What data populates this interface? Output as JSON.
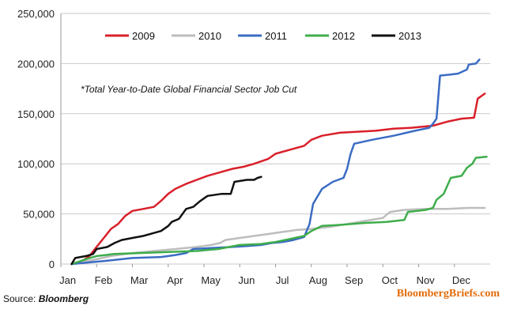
{
  "chart_data": {
    "type": "line",
    "annotation": "*Total Year-to-Date Global Financial Sector Job Cut",
    "xlabel": "",
    "ylabel": "",
    "x_axis": {
      "range": [
        0,
        12
      ],
      "unit": "month",
      "tick_labels": [
        "Jan",
        "Feb",
        "Mar",
        "Apr",
        "May",
        "Jun",
        "Jul",
        "Aug",
        "Sep",
        "Oct",
        "Nov",
        "Dec"
      ]
    },
    "ylim": [
      0,
      250000
    ],
    "yticks": [
      0,
      50000,
      100000,
      150000,
      200000,
      250000
    ],
    "ytick_labels": [
      "0",
      "50,000",
      "100,000",
      "150,000",
      "200,000",
      "250,000"
    ],
    "grid": "horizontal",
    "legend_position": "top-center",
    "series": [
      {
        "name": "2009",
        "color": "#d9202a",
        "points": [
          [
            0.3,
            0
          ],
          [
            0.6,
            3000
          ],
          [
            0.8,
            8000
          ],
          [
            0.95,
            15000
          ],
          [
            1.2,
            26000
          ],
          [
            1.4,
            35000
          ],
          [
            1.6,
            40000
          ],
          [
            1.8,
            48000
          ],
          [
            2.0,
            53000
          ],
          [
            2.3,
            55000
          ],
          [
            2.6,
            57000
          ],
          [
            2.8,
            63000
          ],
          [
            3.0,
            70000
          ],
          [
            3.2,
            75000
          ],
          [
            3.5,
            80000
          ],
          [
            3.8,
            84000
          ],
          [
            4.1,
            88000
          ],
          [
            4.5,
            92000
          ],
          [
            4.8,
            95000
          ],
          [
            5.1,
            97000
          ],
          [
            5.4,
            100000
          ],
          [
            5.8,
            105000
          ],
          [
            6.0,
            110000
          ],
          [
            6.4,
            114000
          ],
          [
            6.8,
            118000
          ],
          [
            7.0,
            124000
          ],
          [
            7.3,
            128000
          ],
          [
            7.8,
            131000
          ],
          [
            8.3,
            132000
          ],
          [
            8.8,
            133000
          ],
          [
            9.3,
            135000
          ],
          [
            9.8,
            136000
          ],
          [
            10.4,
            138000
          ],
          [
            10.8,
            142000
          ],
          [
            11.2,
            145000
          ],
          [
            11.55,
            146000
          ],
          [
            11.65,
            165000
          ],
          [
            11.85,
            170000
          ]
        ]
      },
      {
        "name": "2010",
        "color": "#bdbdbd",
        "points": [
          [
            0.3,
            0
          ],
          [
            0.9,
            4000
          ],
          [
            1.4,
            8000
          ],
          [
            2.0,
            11000
          ],
          [
            2.6,
            13000
          ],
          [
            3.2,
            15000
          ],
          [
            3.8,
            17000
          ],
          [
            4.2,
            19000
          ],
          [
            4.45,
            21000
          ],
          [
            4.6,
            24000
          ],
          [
            5.0,
            26000
          ],
          [
            5.4,
            28000
          ],
          [
            5.8,
            30000
          ],
          [
            6.2,
            32000
          ],
          [
            6.6,
            34000
          ],
          [
            7.0,
            35000
          ],
          [
            7.5,
            37000
          ],
          [
            8.0,
            40000
          ],
          [
            8.5,
            43000
          ],
          [
            9.0,
            46000
          ],
          [
            9.2,
            52000
          ],
          [
            9.6,
            54000
          ],
          [
            10.2,
            55000
          ],
          [
            10.8,
            55000
          ],
          [
            11.4,
            56000
          ],
          [
            11.85,
            56000
          ]
        ]
      },
      {
        "name": "2011",
        "color": "#3b6cc4",
        "points": [
          [
            0.3,
            0
          ],
          [
            1.2,
            3000
          ],
          [
            2.0,
            6000
          ],
          [
            2.8,
            7000
          ],
          [
            3.2,
            9000
          ],
          [
            3.5,
            11000
          ],
          [
            3.7,
            15000
          ],
          [
            4.2,
            16000
          ],
          [
            4.8,
            17000
          ],
          [
            5.2,
            18000
          ],
          [
            5.6,
            19000
          ],
          [
            5.9,
            21000
          ],
          [
            6.2,
            22000
          ],
          [
            6.5,
            24000
          ],
          [
            6.8,
            27000
          ],
          [
            6.95,
            40000
          ],
          [
            7.05,
            60000
          ],
          [
            7.3,
            75000
          ],
          [
            7.6,
            82000
          ],
          [
            7.9,
            86000
          ],
          [
            8.0,
            95000
          ],
          [
            8.1,
            110000
          ],
          [
            8.2,
            120000
          ],
          [
            8.7,
            124000
          ],
          [
            9.3,
            128000
          ],
          [
            9.9,
            133000
          ],
          [
            10.3,
            136000
          ],
          [
            10.4,
            140000
          ],
          [
            10.5,
            145000
          ],
          [
            10.6,
            188000
          ],
          [
            10.9,
            189000
          ],
          [
            11.1,
            190000
          ],
          [
            11.35,
            194000
          ],
          [
            11.4,
            199000
          ],
          [
            11.6,
            200000
          ],
          [
            11.7,
            204000
          ]
        ]
      },
      {
        "name": "2012",
        "color": "#3ead4b",
        "points": [
          [
            0.3,
            0
          ],
          [
            0.8,
            6000
          ],
          [
            1.0,
            8000
          ],
          [
            1.5,
            10000
          ],
          [
            2.2,
            11000
          ],
          [
            3.0,
            12000
          ],
          [
            3.8,
            13000
          ],
          [
            4.4,
            15000
          ],
          [
            5.0,
            19000
          ],
          [
            5.6,
            20000
          ],
          [
            6.0,
            22000
          ],
          [
            6.4,
            25000
          ],
          [
            6.8,
            28000
          ],
          [
            7.0,
            33000
          ],
          [
            7.3,
            38000
          ],
          [
            7.8,
            39000
          ],
          [
            8.5,
            41000
          ],
          [
            9.1,
            42000
          ],
          [
            9.6,
            44000
          ],
          [
            9.7,
            52000
          ],
          [
            10.2,
            54000
          ],
          [
            10.4,
            56000
          ],
          [
            10.5,
            64000
          ],
          [
            10.7,
            70000
          ],
          [
            10.9,
            86000
          ],
          [
            11.2,
            88000
          ],
          [
            11.35,
            96000
          ],
          [
            11.5,
            100000
          ],
          [
            11.6,
            106000
          ],
          [
            11.9,
            107000
          ]
        ]
      },
      {
        "name": "2013",
        "color": "#111111",
        "points": [
          [
            0.3,
            0
          ],
          [
            0.4,
            6000
          ],
          [
            0.7,
            8000
          ],
          [
            0.9,
            10000
          ],
          [
            1.0,
            15000
          ],
          [
            1.3,
            17000
          ],
          [
            1.5,
            21000
          ],
          [
            1.7,
            24000
          ],
          [
            2.0,
            26000
          ],
          [
            2.3,
            28000
          ],
          [
            2.6,
            31000
          ],
          [
            2.8,
            33000
          ],
          [
            3.0,
            38000
          ],
          [
            3.1,
            42000
          ],
          [
            3.3,
            45000
          ],
          [
            3.5,
            55000
          ],
          [
            3.7,
            57000
          ],
          [
            3.9,
            63000
          ],
          [
            4.1,
            68000
          ],
          [
            4.5,
            70000
          ],
          [
            4.75,
            70000
          ],
          [
            4.85,
            82000
          ],
          [
            5.2,
            84000
          ],
          [
            5.4,
            84000
          ],
          [
            5.5,
            86000
          ],
          [
            5.6,
            87000
          ]
        ]
      }
    ]
  },
  "footer": {
    "source_label": "Source: ",
    "source_name": "Bloomberg",
    "brand": "BloombergBriefs.com"
  }
}
